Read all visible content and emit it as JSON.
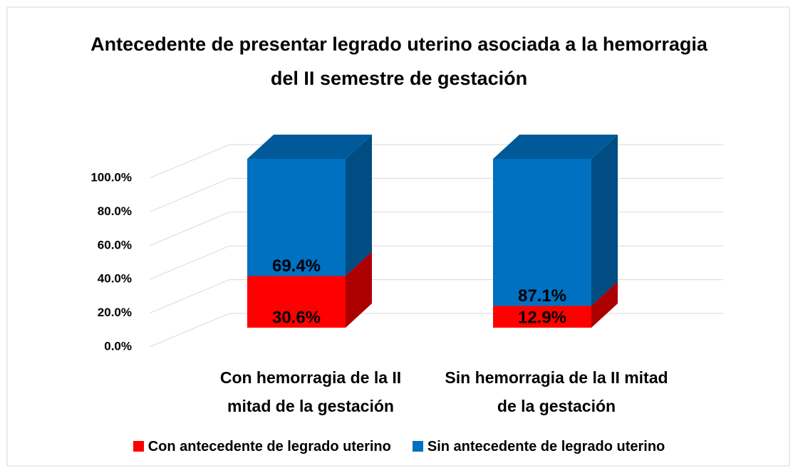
{
  "chart_data": {
    "type": "bar3d_stacked",
    "title": "Antecedente de presentar legrado uterino asociada a la hemorragia del II semestre de gestación",
    "categories": [
      "Con hemorragia de la II mitad de la gestación",
      "Sin hemorragia de la II mitad de la gestación"
    ],
    "series": [
      {
        "name": "Con antecedente de legrado uterino",
        "color": "#ff0000",
        "values": [
          30.6,
          12.9
        ],
        "value_labels": [
          "30.6%",
          "12.9%"
        ]
      },
      {
        "name": "Sin antecedente de legrado uterino",
        "color": "#0070c0",
        "values": [
          69.4,
          87.1
        ],
        "value_labels": [
          "69.4%",
          "87.1%"
        ]
      }
    ],
    "ylim": [
      0,
      100
    ],
    "yticks": [
      {
        "value": 0,
        "label": "0.0%"
      },
      {
        "value": 20,
        "label": "20.0%"
      },
      {
        "value": 40,
        "label": "40.0%"
      },
      {
        "value": 60,
        "label": "60.0%"
      },
      {
        "value": 80,
        "label": "80.0%"
      },
      {
        "value": 100,
        "label": "100.0%"
      }
    ],
    "grid": true,
    "legend": "bottom"
  }
}
